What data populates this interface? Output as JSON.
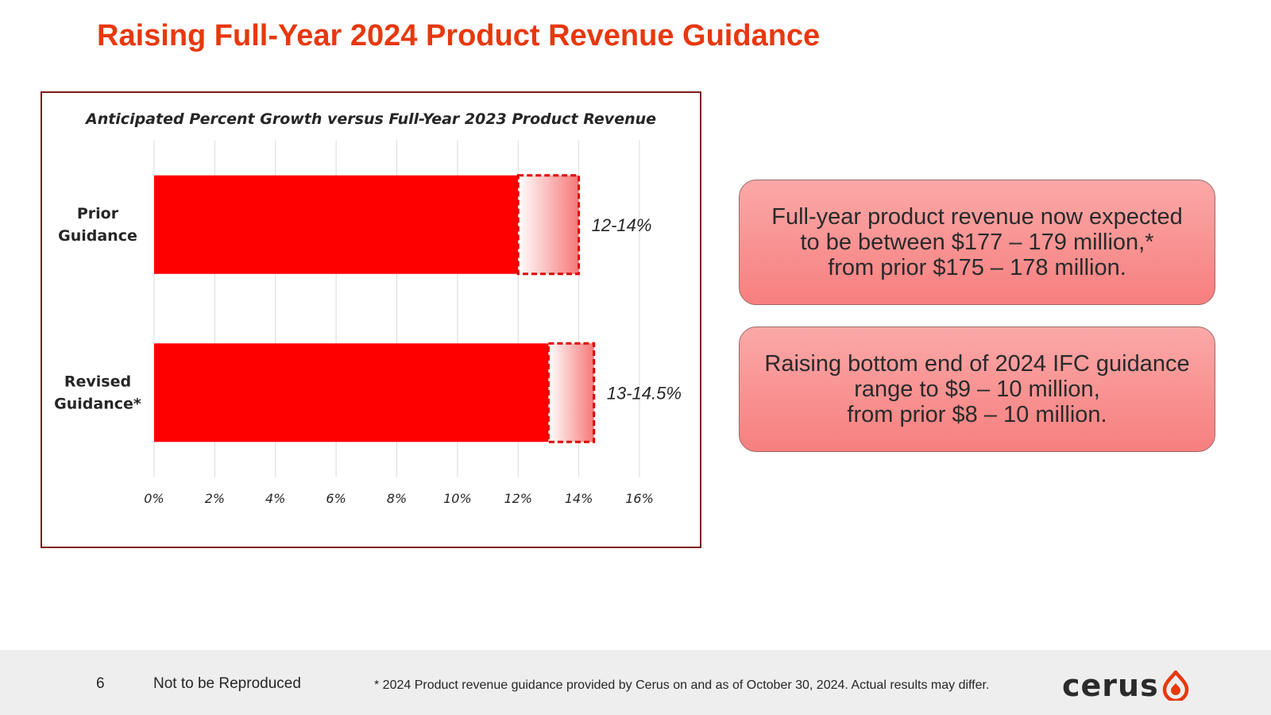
{
  "slide": {
    "title": "Raising Full-Year 2024 Product Revenue Guidance"
  },
  "chart_data": {
    "type": "bar",
    "orientation": "horizontal",
    "title": "Anticipated Percent Growth versus Full-Year 2023 Product Revenue",
    "categories": [
      "Prior Guidance",
      "Revised Guidance*"
    ],
    "category_lines": [
      [
        "Prior",
        "Guidance"
      ],
      [
        "Revised",
        "Guidance*"
      ]
    ],
    "ranges": [
      {
        "low": 12,
        "high": 14,
        "label": "12-14%"
      },
      {
        "low": 13,
        "high": 14.5,
        "label": "13-14.5%"
      }
    ],
    "x_ticks": [
      "0%",
      "2%",
      "4%",
      "6%",
      "8%",
      "10%",
      "12%",
      "14%",
      "16%"
    ],
    "xlim": [
      0,
      16
    ],
    "grid": true,
    "legend": "none",
    "colors": {
      "bar": "#ff0000",
      "range_border": "#e00000"
    }
  },
  "callouts": [
    {
      "text": "Full-year product revenue now expected\nto be between $177 – 179 million,*\nfrom prior $175 – 178 million."
    },
    {
      "text": "Raising bottom end of 2024 IFC guidance\nrange to $9 – 10 million,\nfrom prior $8 – 10 million."
    }
  ],
  "footer": {
    "page_number": "6",
    "not_reproduced": "Not to be Reproduced",
    "footnote": "* 2024 Product revenue guidance provided by Cerus on and as of October 30, 2024. Actual results may differ.",
    "logo_text": "cerus",
    "logo_icon": "droplet-icon"
  },
  "colors": {
    "title": "#e8380d",
    "logo_accent": "#e8380d"
  }
}
